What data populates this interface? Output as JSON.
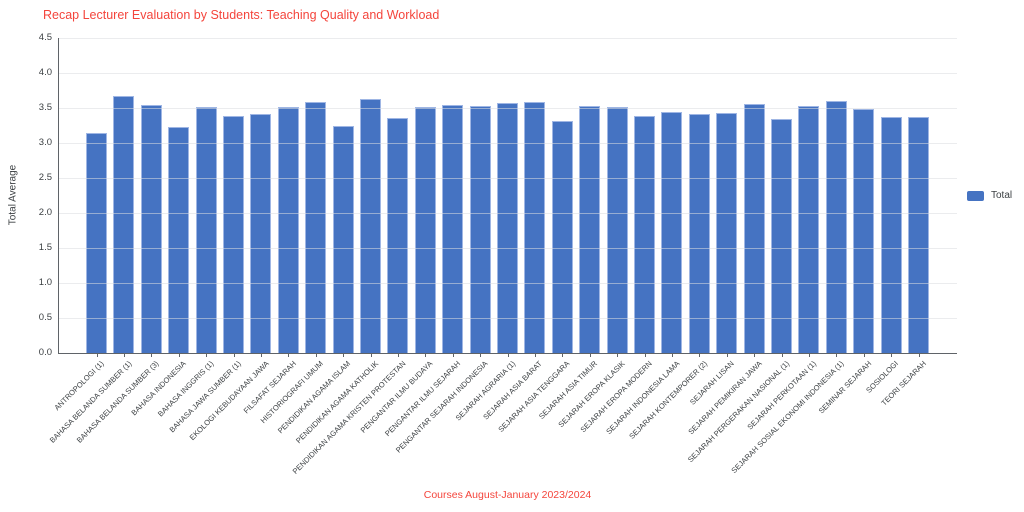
{
  "chart": {
    "colors": {
      "background": "#ffffff",
      "bar_fill": "#4573c2",
      "bar_edge": "#9fb6e4",
      "title_text": "#f4453c",
      "axis_title_text": "#f4453c",
      "axis_text": "#3c4043",
      "gridline": "#dadce0",
      "axis_line": "#5f6368"
    }
  },
  "chart_data": {
    "type": "bar",
    "title": "Recap Lecturer Evaluation by Students: Teaching Quality and Workload",
    "xlabel": "Courses August-January 2023/2024",
    "ylabel": "Total Average",
    "ylim": [
      0,
      4.5
    ],
    "ytick_step": 0.5,
    "grid": true,
    "legend_position": "right",
    "categories": [
      "ANTROPOLOGI (1)",
      "BAHASA BELANDA SUMBER (1)",
      "BAHASA BELANDA SUMBER (3)",
      "BAHASA INDONESIA",
      "BAHASA INGGRIS (1)",
      "BAHASA JAWA SUMBER (1)",
      "EKOLOGI KEBUDAYAAN JAWA",
      "FILSAFAT SEJARAH",
      "HISTORIOGRAFI UMUM",
      "PENDIDIKAN AGAMA ISLAM",
      "PENDIDIKAN AGAMA KATHOLIK",
      "PENDIDIKAN AGAMA KRISTEN PROTESTAN",
      "PENGANTAR ILMU BUDAYA",
      "PENGANTAR ILMU SEJARAH",
      "PENGANTAR SEJARAH INDONESIA",
      "SEJARAH AGRARIA (1)",
      "SEJARAH ASIA BARAT",
      "SEJARAH ASIA TENGGARA",
      "SEJARAH ASIA TIMUR",
      "SEJARAH EROPA KLASIK",
      "SEJARAH EROPA MODERN",
      "SEJARAH INDONESIA LAMA",
      "SEJARAH KONTEMPORER (2)",
      "SEJARAH LISAN",
      "SEJARAH PEMIKIRAN JAWA",
      "SEJARAH PERGERAKAN NASIONAL (1)",
      "SEJARAH PERKOTAAN (1)",
      "SEJARAH SOSIAL EKONOMI INDONESIA (1)",
      "SEMINAR SEJARAH",
      "SOSIOLOGI",
      "TEORI SEJARAH"
    ],
    "series": [
      {
        "name": "Total",
        "color": "#4573c2",
        "values": [
          3.14,
          3.67,
          3.54,
          3.23,
          3.52,
          3.38,
          3.41,
          3.51,
          3.58,
          3.24,
          3.63,
          3.36,
          3.51,
          3.55,
          3.53,
          3.57,
          3.59,
          3.32,
          3.53,
          3.52,
          3.38,
          3.45,
          3.41,
          3.43,
          3.56,
          3.34,
          3.53,
          3.6,
          3.49,
          3.37,
          3.37
        ]
      }
    ]
  }
}
